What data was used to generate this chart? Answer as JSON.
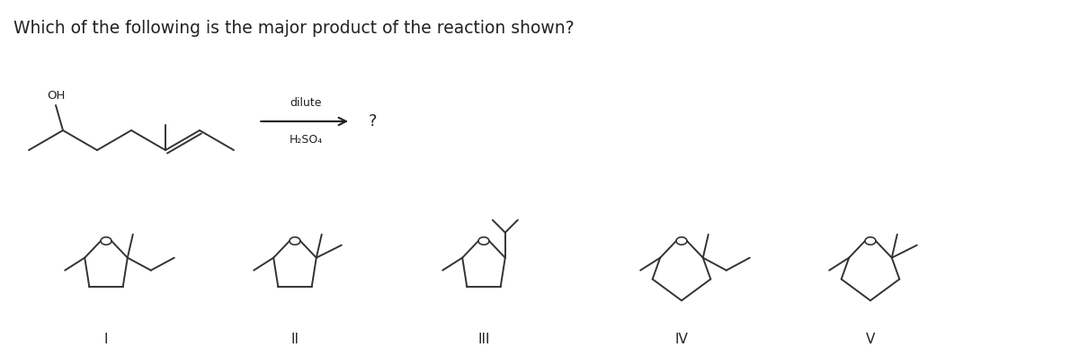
{
  "title": "Which of the following is the major product of the reaction shown?",
  "title_fontsize": 13.5,
  "background_color": "#ffffff",
  "text_color": "#222222",
  "line_color": "#333333",
  "label_I": "I",
  "label_II": "II",
  "label_III": "III",
  "label_IV": "IV",
  "label_V": "V",
  "reagent_top": "dilute",
  "reagent_bottom": "H₂SO₄",
  "question_mark": "?"
}
